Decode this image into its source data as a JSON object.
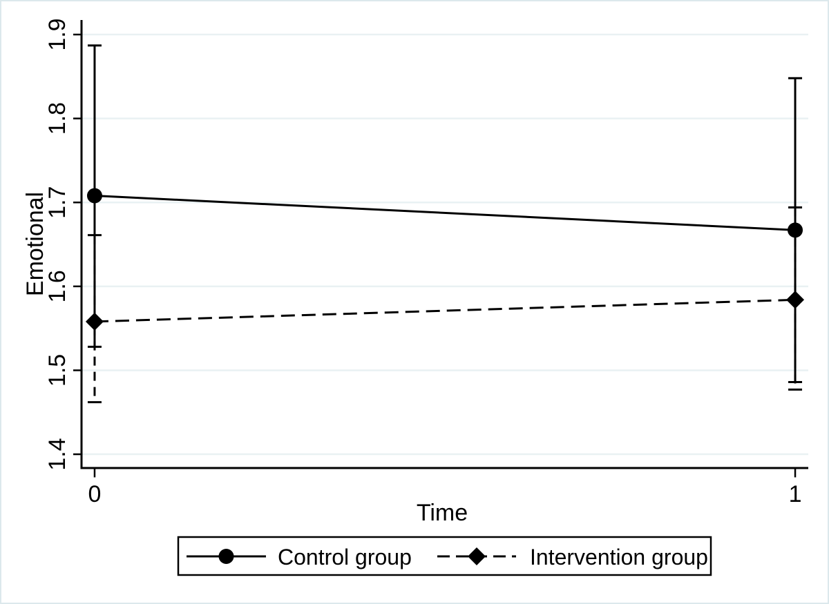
{
  "figure": {
    "background": "#ffffff",
    "border_color": "#dce8ec"
  },
  "chart_data": {
    "type": "line",
    "title": "",
    "xlabel": "Time",
    "ylabel": "Emotional",
    "x": [
      0,
      1
    ],
    "xtick_labels": [
      "0",
      "1"
    ],
    "yticks": [
      1.4,
      1.5,
      1.6,
      1.7,
      1.8,
      1.9
    ],
    "ytick_labels": [
      "1.4",
      "1.5",
      "1.6",
      "1.7",
      "1.8",
      "1.9"
    ],
    "xlim": [
      -0.0187,
      1.0187
    ],
    "ylim": [
      1.3836,
      1.9173
    ],
    "grid": "horizontal",
    "grid_color": "#e9f1f3",
    "line_color": "#000000",
    "error_bars": "capped",
    "legend_position": "bottom-boxed",
    "series": [
      {
        "name": "Control group",
        "marker": "circle",
        "line_style": "solid",
        "values": [
          1.708,
          1.667
        ],
        "ci_lower": [
          1.528,
          1.486
        ],
        "ci_upper": [
          1.887,
          1.848
        ]
      },
      {
        "name": "Intervention group",
        "marker": "diamond",
        "line_style": "dashed",
        "values": [
          1.558,
          1.584
        ],
        "ci_lower": [
          1.462,
          1.477
        ],
        "ci_upper": [
          1.661,
          1.694
        ]
      }
    ]
  }
}
